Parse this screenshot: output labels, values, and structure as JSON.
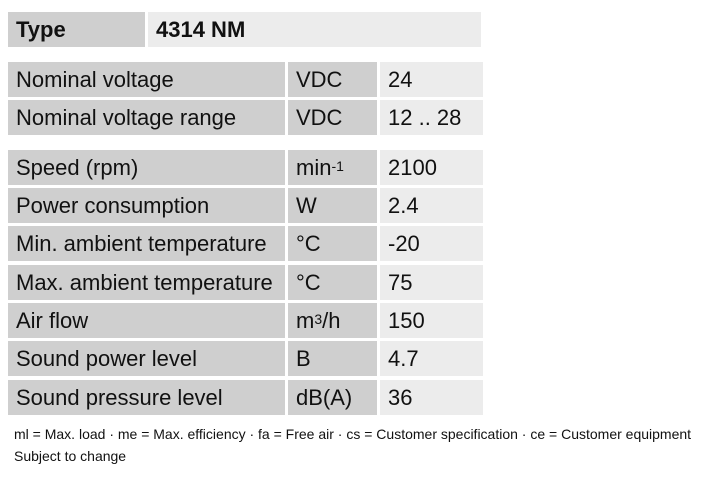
{
  "type_row": {
    "label": "Type",
    "value": "4314 NM"
  },
  "group1": [
    {
      "label": "Nominal voltage",
      "unit": "VDC",
      "value": "24"
    },
    {
      "label": "Nominal voltage range",
      "unit": "VDC",
      "value": "12 .. 28"
    }
  ],
  "group2": [
    {
      "label": "Speed (rpm)",
      "unit_base": "min",
      "unit_sup": "-1",
      "value": "2100"
    },
    {
      "label": "Power consumption",
      "unit": "W",
      "value": "2.4"
    },
    {
      "label": "Min. ambient temperature",
      "unit": "°C",
      "value": "-20"
    },
    {
      "label": "Max. ambient temperature",
      "unit": "°C",
      "value": "75"
    },
    {
      "label": "Air flow",
      "unit_base": "m",
      "unit_sup": "3",
      "unit_tail": "/h",
      "value": "150"
    },
    {
      "label": "Sound power level",
      "unit": "B",
      "value": "4.7"
    },
    {
      "label": "Sound pressure level",
      "unit": "dB(A)",
      "value": "36"
    }
  ],
  "footer": {
    "legend": "ml = Max. load · me = Max. efficiency · fa = Free air · cs = Customer specification · ce = Customer equipment",
    "notice": "Subject to change"
  }
}
